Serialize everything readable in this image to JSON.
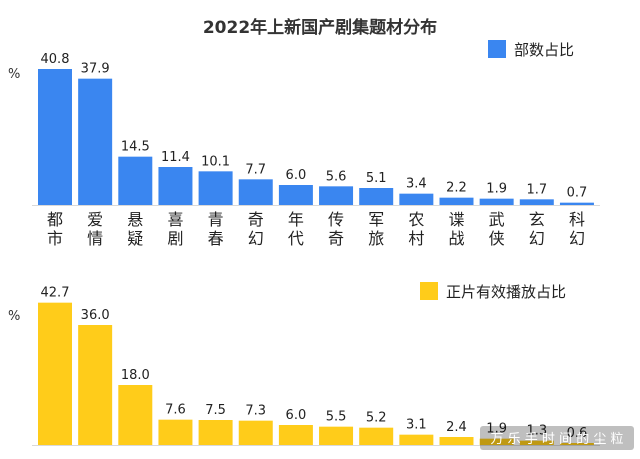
{
  "chart_data": [
    {
      "type": "bar",
      "title": "2022年上新国产剧集题材分布",
      "unit": "%",
      "legend": "部数占比",
      "legend_position": "top-right",
      "color": "#3A86F0",
      "categories": [
        "都市",
        "爱情",
        "悬疑",
        "喜剧",
        "青春",
        "奇幻",
        "年代",
        "传奇",
        "军旅",
        "农村",
        "谍战",
        "武侠",
        "玄幻",
        "科幻"
      ],
      "values": [
        40.8,
        37.9,
        14.5,
        11.4,
        10.1,
        7.7,
        6.0,
        5.6,
        5.1,
        3.4,
        2.2,
        1.9,
        1.7,
        0.7
      ],
      "value_labels": [
        "40.8",
        "37.9",
        "14.5",
        "11.4",
        "10.1",
        "7.7",
        "6.0",
        "5.6",
        "5.1",
        "3.4",
        "2.2",
        "1.9",
        "1.7",
        "0.7"
      ],
      "ylim": [
        0,
        45
      ],
      "grid": false
    },
    {
      "type": "bar",
      "unit": "%",
      "legend": "正片有效播放占比",
      "legend_position": "top-right",
      "color": "#FFCC1A",
      "values": [
        42.7,
        36.0,
        18.0,
        7.6,
        7.5,
        7.3,
        6.0,
        5.5,
        5.2,
        3.1,
        2.4,
        1.9,
        1.3,
        0.6
      ],
      "value_labels": [
        "42.7",
        "36.0",
        "18.0",
        "7.6",
        "7.5",
        "7.3",
        "6.0",
        "5.5",
        "5.2",
        "3.1",
        "2.4",
        "1.9",
        "1.3",
        "0.6"
      ],
      "ylim": [
        0,
        45
      ],
      "grid": false
    }
  ],
  "watermark": {
    "text": "万 乐 手 时 间 的 尘 粒"
  }
}
